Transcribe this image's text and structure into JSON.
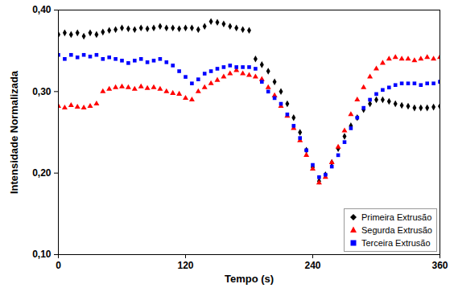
{
  "chart_data": {
    "type": "scatter",
    "x_label": "Tempo (s)",
    "y_label": "Intensidade Normalizada",
    "xlim": [
      0,
      360
    ],
    "xticks": [
      0,
      120,
      240,
      360
    ],
    "ylim": [
      0.1,
      0.4
    ],
    "yticks": [
      {
        "value": 0.1,
        "label": "0,10"
      },
      {
        "value": 0.2,
        "label": "0,20"
      },
      {
        "value": 0.3,
        "label": "0,30"
      },
      {
        "value": 0.4,
        "label": "0,40"
      }
    ],
    "legend": "lower right",
    "x": [
      0,
      6,
      12,
      18,
      24,
      30,
      36,
      42,
      48,
      54,
      60,
      66,
      72,
      78,
      84,
      90,
      96,
      102,
      108,
      114,
      120,
      126,
      132,
      138,
      144,
      150,
      156,
      162,
      168,
      174,
      180,
      186,
      192,
      198,
      204,
      210,
      216,
      222,
      228,
      234,
      240,
      246,
      252,
      258,
      264,
      270,
      276,
      282,
      288,
      294,
      300,
      306,
      312,
      318,
      324,
      330,
      336,
      342,
      348,
      354,
      360
    ],
    "series": [
      {
        "name": "Primeira Extrusão",
        "color": "#000000",
        "marker": "diamond",
        "values": [
          0.37,
          0.372,
          0.37,
          0.372,
          0.368,
          0.372,
          0.37,
          0.373,
          0.375,
          0.376,
          0.378,
          0.377,
          0.376,
          0.378,
          0.377,
          0.378,
          0.38,
          0.378,
          0.378,
          0.377,
          0.378,
          0.378,
          0.376,
          0.38,
          0.386,
          0.385,
          0.383,
          0.38,
          0.378,
          0.376,
          0.375,
          0.34,
          0.333,
          0.325,
          0.312,
          0.3,
          0.285,
          0.268,
          0.25,
          0.228,
          0.207,
          0.19,
          0.198,
          0.213,
          0.23,
          0.245,
          0.258,
          0.268,
          0.278,
          0.285,
          0.29,
          0.29,
          0.288,
          0.285,
          0.283,
          0.282,
          0.28,
          0.28,
          0.28,
          0.281,
          0.282
        ]
      },
      {
        "name": "Segurda Extrusão",
        "color": "#ff0000",
        "marker": "triangle",
        "values": [
          0.282,
          0.28,
          0.283,
          0.281,
          0.28,
          0.282,
          0.285,
          0.3,
          0.303,
          0.305,
          0.306,
          0.305,
          0.303,
          0.306,
          0.304,
          0.305,
          0.303,
          0.3,
          0.298,
          0.297,
          0.292,
          0.29,
          0.3,
          0.305,
          0.31,
          0.314,
          0.318,
          0.322,
          0.326,
          0.322,
          0.32,
          0.318,
          0.315,
          0.305,
          0.295,
          0.282,
          0.27,
          0.255,
          0.24,
          0.222,
          0.205,
          0.188,
          0.195,
          0.213,
          0.232,
          0.252,
          0.272,
          0.29,
          0.305,
          0.318,
          0.328,
          0.335,
          0.34,
          0.342,
          0.34,
          0.34,
          0.338,
          0.34,
          0.342,
          0.34,
          0.342
        ]
      },
      {
        "name": "Terceira Extrusão",
        "color": "#0000ff",
        "marker": "square",
        "values": [
          0.345,
          0.34,
          0.345,
          0.342,
          0.345,
          0.343,
          0.345,
          0.34,
          0.342,
          0.34,
          0.338,
          0.335,
          0.338,
          0.34,
          0.336,
          0.338,
          0.34,
          0.336,
          0.332,
          0.325,
          0.318,
          0.31,
          0.315,
          0.322,
          0.325,
          0.328,
          0.33,
          0.332,
          0.33,
          0.33,
          0.33,
          0.328,
          0.312,
          0.3,
          0.292,
          0.285,
          0.272,
          0.258,
          0.243,
          0.228,
          0.21,
          0.195,
          0.198,
          0.208,
          0.222,
          0.238,
          0.255,
          0.268,
          0.28,
          0.29,
          0.297,
          0.302,
          0.305,
          0.308,
          0.31,
          0.31,
          0.31,
          0.308,
          0.31,
          0.31,
          0.312
        ]
      }
    ]
  }
}
